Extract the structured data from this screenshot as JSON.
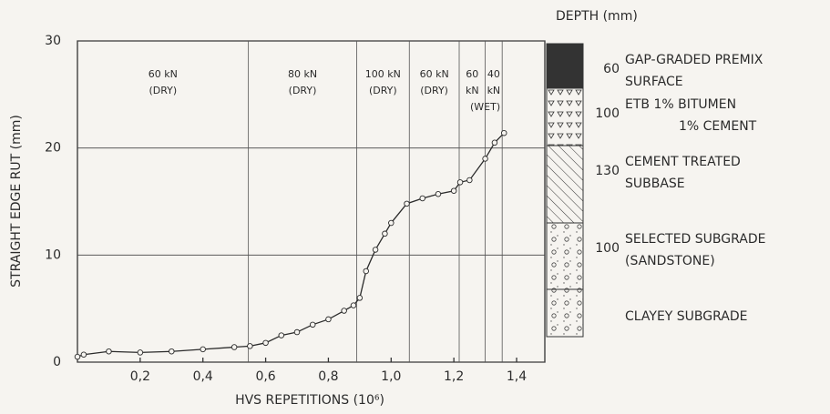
{
  "chart_data": {
    "type": "line",
    "xlabel": "HVS REPETITIONS (10⁶)",
    "ylabel": "STRAIGHT EDGE RUT (mm)",
    "xlim": [
      0,
      1.49
    ],
    "ylim": [
      0,
      30
    ],
    "xticks": [
      {
        "value": 0.2,
        "label": "0,2"
      },
      {
        "value": 0.4,
        "label": "0,4"
      },
      {
        "value": 0.6,
        "label": "0,6"
      },
      {
        "value": 0.8,
        "label": "0,8"
      },
      {
        "value": 1.0,
        "label": "1,0"
      },
      {
        "value": 1.2,
        "label": "1,2"
      },
      {
        "value": 1.4,
        "label": "1,4"
      }
    ],
    "yticks": [
      0,
      10,
      20,
      30
    ],
    "grid": true,
    "color": "#2b2b2b",
    "x": [
      0,
      0.02,
      0.1,
      0.2,
      0.3,
      0.4,
      0.5,
      0.55,
      0.6,
      0.65,
      0.7,
      0.75,
      0.8,
      0.85,
      0.88,
      0.9,
      0.92,
      0.95,
      0.98,
      1.0,
      1.05,
      1.1,
      1.15,
      1.2,
      1.22,
      1.25,
      1.3,
      1.33,
      1.36
    ],
    "values": [
      0.5,
      0.7,
      1,
      0.9,
      1,
      1.2,
      1.4,
      1.5,
      1.8,
      2.5,
      2.8,
      3.5,
      4,
      4.8,
      5.3,
      6,
      8.5,
      10.5,
      12,
      13,
      14.8,
      15.3,
      15.7,
      16,
      16.8,
      17,
      19,
      20.5,
      21.4
    ],
    "dividers": [
      0.545,
      0.89,
      1.058,
      1.217,
      1.3,
      1.354
    ],
    "regions": [
      {
        "lines": [
          "60 kN",
          "(DRY)"
        ]
      },
      {
        "lines": [
          "80 kN",
          "(DRY)"
        ]
      },
      {
        "lines": [
          "100 kN",
          "(DRY)"
        ]
      },
      {
        "lines": [
          "60 kN",
          "(DRY)"
        ]
      },
      {
        "lines": [
          "60",
          "kN"
        ]
      },
      {
        "lines": [
          "40",
          "kN"
        ]
      }
    ],
    "wet_label": "(WET)",
    "depth_header": "DEPTH (mm)",
    "layers": [
      {
        "depth": 60,
        "lines": [
          "GAP-GRADED PREMIX",
          "SURFACE"
        ]
      },
      {
        "depth": 100,
        "lines": [
          "ETB 1% BITUMEN",
          "1% CEMENT"
        ]
      },
      {
        "depth": 130,
        "lines": [
          "CEMENT TREATED",
          "SUBBASE"
        ]
      },
      {
        "depth": 100,
        "lines": [
          "SELECTED SUBGRADE",
          "(SANDSTONE)"
        ]
      },
      {
        "lines": [
          "CLAYEY SUBGRADE"
        ]
      }
    ]
  }
}
